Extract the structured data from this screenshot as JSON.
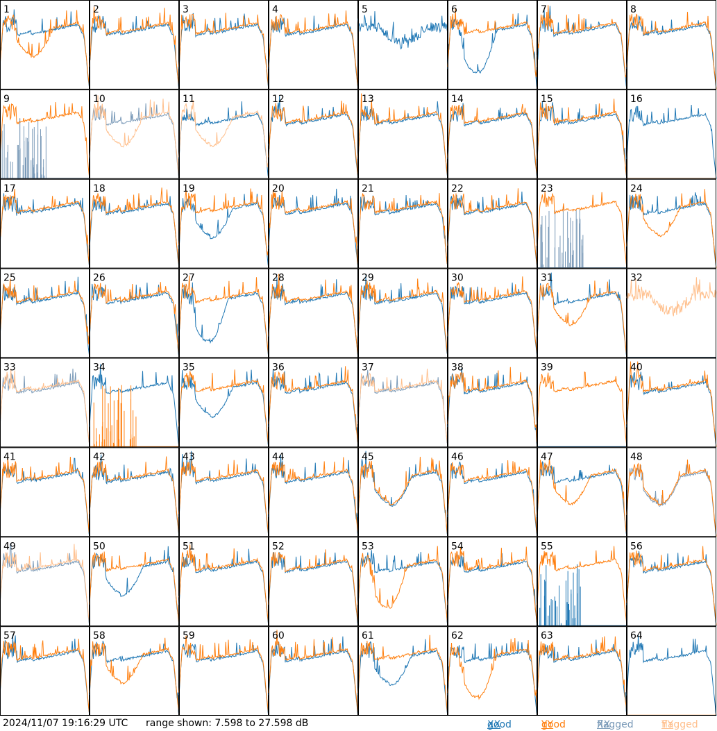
{
  "footer": {
    "timestamp": "2024/11/07 19:16:29 UTC",
    "range_label": "range shown: 7.598 to 27.598 dB"
  },
  "legend": [
    {
      "word": "good",
      "pol": "XX",
      "color": "#1f77b4"
    },
    {
      "word": "good",
      "pol": "YY",
      "color": "#ff7f0e"
    },
    {
      "word": "flagged",
      "pol": "XX",
      "color": "#7a9ab8"
    },
    {
      "word": "flagged",
      "pol": "YY",
      "color": "#ffbf8c"
    }
  ],
  "chart_data": {
    "type": "line",
    "title": "",
    "ylim": [
      7.598,
      27.598
    ],
    "grid_rows": 8,
    "grid_cols": 8,
    "colors": {
      "good_xx": "#1f77b4",
      "good_yy": "#ff7f0e",
      "flagged_xx": "#7a9ab8",
      "flagged_yy": "#ffbf8c"
    },
    "series_names": [
      "good XX",
      "good YY",
      "flagged XX",
      "flagged YY"
    ],
    "panels": [
      {
        "label": "1",
        "xx": "normal",
        "yy": "dip",
        "xx_flagged": false,
        "yy_flagged": false
      },
      {
        "label": "2",
        "xx": "normal",
        "yy": "normal",
        "xx_flagged": false,
        "yy_flagged": false
      },
      {
        "label": "3",
        "xx": "normal",
        "yy": "normal",
        "xx_flagged": false,
        "yy_flagged": false
      },
      {
        "label": "4",
        "xx": "normal",
        "yy": "normal",
        "xx_flagged": false,
        "yy_flagged": false
      },
      {
        "label": "5",
        "xx": "noisy",
        "yy": "none",
        "xx_flagged": false,
        "yy_flagged": false
      },
      {
        "label": "6",
        "xx": "deepdip",
        "yy": "normal",
        "xx_flagged": false,
        "yy_flagged": false
      },
      {
        "label": "7",
        "xx": "normal",
        "yy": "normal",
        "xx_flagged": false,
        "yy_flagged": false
      },
      {
        "label": "8",
        "xx": "normal",
        "yy": "normal",
        "xx_flagged": false,
        "yy_flagged": false
      },
      {
        "label": "9",
        "xx": "spikes",
        "yy": "normal",
        "xx_flagged": true,
        "yy_flagged": false
      },
      {
        "label": "10",
        "xx": "normal",
        "yy": "dip",
        "xx_flagged": true,
        "yy_flagged": true
      },
      {
        "label": "11",
        "xx": "normal",
        "yy": "dip",
        "xx_flagged": false,
        "yy_flagged": true
      },
      {
        "label": "12",
        "xx": "normal",
        "yy": "normal",
        "xx_flagged": false,
        "yy_flagged": false
      },
      {
        "label": "13",
        "xx": "normal",
        "yy": "normal",
        "xx_flagged": false,
        "yy_flagged": false
      },
      {
        "label": "14",
        "xx": "normal",
        "yy": "normal",
        "xx_flagged": false,
        "yy_flagged": false
      },
      {
        "label": "15",
        "xx": "normal",
        "yy": "normal",
        "xx_flagged": false,
        "yy_flagged": false
      },
      {
        "label": "16",
        "xx": "normal",
        "yy": "dead",
        "xx_flagged": false,
        "yy_flagged": true
      },
      {
        "label": "17",
        "xx": "normal",
        "yy": "normal",
        "xx_flagged": false,
        "yy_flagged": false
      },
      {
        "label": "18",
        "xx": "normal",
        "yy": "normal",
        "xx_flagged": false,
        "yy_flagged": false
      },
      {
        "label": "19",
        "xx": "dip",
        "yy": "normal",
        "xx_flagged": false,
        "yy_flagged": false
      },
      {
        "label": "20",
        "xx": "normal",
        "yy": "normal",
        "xx_flagged": false,
        "yy_flagged": false
      },
      {
        "label": "21",
        "xx": "normal",
        "yy": "normal",
        "xx_flagged": false,
        "yy_flagged": false
      },
      {
        "label": "22",
        "xx": "normal",
        "yy": "normal",
        "xx_flagged": false,
        "yy_flagged": false
      },
      {
        "label": "23",
        "xx": "spikes",
        "yy": "normal",
        "xx_flagged": true,
        "yy_flagged": false
      },
      {
        "label": "24",
        "xx": "normal",
        "yy": "dip",
        "xx_flagged": false,
        "yy_flagged": false
      },
      {
        "label": "25",
        "xx": "normal",
        "yy": "normal",
        "xx_flagged": false,
        "yy_flagged": false
      },
      {
        "label": "26",
        "xx": "normal",
        "yy": "normal",
        "xx_flagged": false,
        "yy_flagged": false
      },
      {
        "label": "27",
        "xx": "deepdip",
        "yy": "normal",
        "xx_flagged": false,
        "yy_flagged": false
      },
      {
        "label": "28",
        "xx": "normal",
        "yy": "normal",
        "xx_flagged": false,
        "yy_flagged": false
      },
      {
        "label": "29",
        "xx": "normal",
        "yy": "normal",
        "xx_flagged": false,
        "yy_flagged": false
      },
      {
        "label": "30",
        "xx": "normal",
        "yy": "normal",
        "xx_flagged": false,
        "yy_flagged": false
      },
      {
        "label": "31",
        "xx": "normal",
        "yy": "dip",
        "xx_flagged": false,
        "yy_flagged": false
      },
      {
        "label": "32",
        "xx": "dead",
        "yy": "noisy",
        "xx_flagged": true,
        "yy_flagged": true
      },
      {
        "label": "33",
        "xx": "normal",
        "yy": "normal",
        "xx_flagged": true,
        "yy_flagged": true
      },
      {
        "label": "34",
        "xx": "normal",
        "yy": "spikes",
        "xx_flagged": false,
        "yy_flagged": false
      },
      {
        "label": "35",
        "xx": "dip",
        "yy": "normal",
        "xx_flagged": false,
        "yy_flagged": false
      },
      {
        "label": "36",
        "xx": "normal",
        "yy": "normal",
        "xx_flagged": false,
        "yy_flagged": false
      },
      {
        "label": "37",
        "xx": "normal",
        "yy": "normal",
        "xx_flagged": true,
        "yy_flagged": true
      },
      {
        "label": "38",
        "xx": "normal",
        "yy": "normal",
        "xx_flagged": false,
        "yy_flagged": false
      },
      {
        "label": "39",
        "xx": "dead",
        "yy": "normal",
        "xx_flagged": false,
        "yy_flagged": false
      },
      {
        "label": "40",
        "xx": "normal",
        "yy": "normal",
        "xx_flagged": false,
        "yy_flagged": false
      },
      {
        "label": "41",
        "xx": "normal",
        "yy": "normal",
        "xx_flagged": false,
        "yy_flagged": false
      },
      {
        "label": "42",
        "xx": "normal",
        "yy": "normal",
        "xx_flagged": false,
        "yy_flagged": false
      },
      {
        "label": "43",
        "xx": "normal",
        "yy": "normal",
        "xx_flagged": false,
        "yy_flagged": false
      },
      {
        "label": "44",
        "xx": "normal",
        "yy": "normal",
        "xx_flagged": false,
        "yy_flagged": false
      },
      {
        "label": "45",
        "xx": "dip",
        "yy": "dip",
        "xx_flagged": false,
        "yy_flagged": false
      },
      {
        "label": "46",
        "xx": "normal",
        "yy": "normal",
        "xx_flagged": false,
        "yy_flagged": false
      },
      {
        "label": "47",
        "xx": "normal",
        "yy": "dip",
        "xx_flagged": false,
        "yy_flagged": false
      },
      {
        "label": "48",
        "xx": "dip",
        "yy": "dip",
        "xx_flagged": true,
        "yy_flagged": false
      },
      {
        "label": "49",
        "xx": "normal",
        "yy": "normal",
        "xx_flagged": true,
        "yy_flagged": true
      },
      {
        "label": "50",
        "xx": "dip",
        "yy": "normal",
        "xx_flagged": false,
        "yy_flagged": false
      },
      {
        "label": "51",
        "xx": "normal",
        "yy": "normal",
        "xx_flagged": false,
        "yy_flagged": false
      },
      {
        "label": "52",
        "xx": "normal",
        "yy": "normal",
        "xx_flagged": false,
        "yy_flagged": false
      },
      {
        "label": "53",
        "xx": "normal",
        "yy": "deepdip",
        "xx_flagged": false,
        "yy_flagged": false
      },
      {
        "label": "54",
        "xx": "normal",
        "yy": "normal",
        "xx_flagged": false,
        "yy_flagged": false
      },
      {
        "label": "55",
        "xx": "spikes",
        "yy": "normal",
        "xx_flagged": false,
        "yy_flagged": false
      },
      {
        "label": "56",
        "xx": "normal",
        "yy": "normal",
        "xx_flagged": false,
        "yy_flagged": false
      },
      {
        "label": "57",
        "xx": "normal",
        "yy": "normal",
        "xx_flagged": false,
        "yy_flagged": false
      },
      {
        "label": "58",
        "xx": "normal",
        "yy": "dip",
        "xx_flagged": false,
        "yy_flagged": false
      },
      {
        "label": "59",
        "xx": "normal",
        "yy": "normal",
        "xx_flagged": false,
        "yy_flagged": false
      },
      {
        "label": "60",
        "xx": "normal",
        "yy": "normal",
        "xx_flagged": false,
        "yy_flagged": false
      },
      {
        "label": "61",
        "xx": "dip",
        "yy": "normal",
        "xx_flagged": false,
        "yy_flagged": false
      },
      {
        "label": "62",
        "xx": "normal",
        "yy": "deepdip",
        "xx_flagged": false,
        "yy_flagged": false
      },
      {
        "label": "63",
        "xx": "normal",
        "yy": "normal",
        "xx_flagged": false,
        "yy_flagged": false
      },
      {
        "label": "64",
        "xx": "normal",
        "yy": "dead",
        "xx_flagged": false,
        "yy_flagged": true
      }
    ]
  }
}
